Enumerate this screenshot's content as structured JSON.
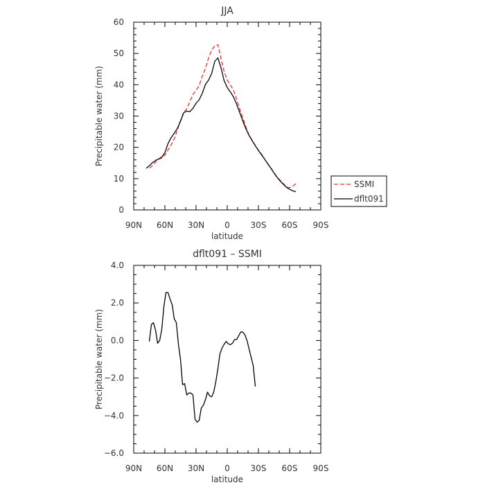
{
  "chart_data": [
    {
      "type": "line",
      "title": "JJA",
      "xlabel": "latitude",
      "ylabel": "Precipitable water (mm)",
      "xlim": [
        90,
        -90
      ],
      "ylim": [
        0,
        60
      ],
      "x_ticks": [
        90,
        60,
        30,
        0,
        -30,
        -60,
        -90
      ],
      "x_tick_labels": [
        "90N",
        "60N",
        "30N",
        "0",
        "30S",
        "60S",
        "90S"
      ],
      "y_ticks": [
        0,
        10,
        20,
        30,
        40,
        50,
        60
      ],
      "y_tick_labels": [
        "0",
        "10",
        "20",
        "30",
        "40",
        "50",
        "60"
      ],
      "legend_position": "outside-right",
      "series": [
        {
          "name": "SSMI",
          "color": "#e8302f",
          "dash": "dashed",
          "points": [
            [
              75,
              13.4
            ],
            [
              72,
              14.1
            ],
            [
              69,
              15.3
            ],
            [
              66,
              16.2
            ],
            [
              63,
              16.6
            ],
            [
              60,
              17.5
            ],
            [
              57,
              19.2
            ],
            [
              54,
              20.8
            ],
            [
              51,
              22.7
            ],
            [
              48,
              25.6
            ],
            [
              45,
              28.6
            ],
            [
              42,
              31.2
            ],
            [
              39,
              32.3
            ],
            [
              36,
              34.6
            ],
            [
              33,
              36.9
            ],
            [
              30,
              38.2
            ],
            [
              27,
              39.8
            ],
            [
              24,
              42.8
            ],
            [
              21,
              45.2
            ],
            [
              18,
              48.6
            ],
            [
              15,
              51.1
            ],
            [
              12,
              52.4
            ],
            [
              9,
              52.8
            ],
            [
              6,
              48.4
            ],
            [
              3,
              44.2
            ],
            [
              0,
              41.5
            ],
            [
              -3,
              39.9
            ],
            [
              -6,
              38.3
            ],
            [
              -9,
              35.4
            ],
            [
              -12,
              32.2
            ],
            [
              -15,
              29.4
            ],
            [
              -18,
              26.4
            ],
            [
              -21,
              23.9
            ],
            [
              -24,
              22.2
            ],
            [
              -27,
              20.6
            ],
            [
              -30,
              19.1
            ],
            [
              -33,
              17.8
            ],
            [
              -36,
              16.2
            ],
            [
              -39,
              14.8
            ],
            [
              -42,
              13.4
            ],
            [
              -45,
              11.9
            ],
            [
              -48,
              10.5
            ],
            [
              -51,
              9.4
            ],
            [
              -54,
              8.4
            ],
            [
              -57,
              7.3
            ],
            [
              -60,
              7.1
            ],
            [
              -63,
              7.6
            ],
            [
              -66,
              8.4
            ]
          ]
        },
        {
          "name": "dflt091",
          "color": "#000000",
          "dash": "solid",
          "points": [
            [
              78,
              13.3
            ],
            [
              75,
              14.1
            ],
            [
              72,
              15.1
            ],
            [
              69,
              15.8
            ],
            [
              66,
              16.3
            ],
            [
              63,
              16.9
            ],
            [
              60,
              18.3
            ],
            [
              57,
              21.2
            ],
            [
              54,
              23.1
            ],
            [
              51,
              24.5
            ],
            [
              48,
              26.1
            ],
            [
              45,
              28.3
            ],
            [
              42,
              31.0
            ],
            [
              39,
              31.6
            ],
            [
              36,
              31.4
            ],
            [
              33,
              32.5
            ],
            [
              30,
              34.1
            ],
            [
              27,
              35.2
            ],
            [
              24,
              37.3
            ],
            [
              21,
              40.1
            ],
            [
              18,
              41.5
            ],
            [
              15,
              43.6
            ],
            [
              12,
              47.5
            ],
            [
              9,
              48.6
            ],
            [
              6,
              45.4
            ],
            [
              3,
              41.3
            ],
            [
              0,
              39.1
            ],
            [
              -3,
              37.7
            ],
            [
              -6,
              36.1
            ],
            [
              -9,
              33.8
            ],
            [
              -12,
              31.1
            ],
            [
              -15,
              28.4
            ],
            [
              -18,
              25.9
            ],
            [
              -21,
              23.8
            ],
            [
              -24,
              22.1
            ],
            [
              -27,
              20.5
            ],
            [
              -30,
              19.0
            ],
            [
              -33,
              17.6
            ],
            [
              -36,
              16.2
            ],
            [
              -39,
              14.7
            ],
            [
              -42,
              13.3
            ],
            [
              -45,
              11.8
            ],
            [
              -48,
              10.4
            ],
            [
              -51,
              9.2
            ],
            [
              -54,
              8.2
            ],
            [
              -57,
              7.2
            ],
            [
              -60,
              6.6
            ],
            [
              -63,
              6.1
            ],
            [
              -66,
              5.8
            ]
          ]
        }
      ]
    },
    {
      "type": "line",
      "title": "dflt091 – SSMI",
      "xlabel": "latitude",
      "ylabel": "Precipitable water (mm)",
      "xlim": [
        90,
        -90
      ],
      "ylim": [
        -6,
        4
      ],
      "x_ticks": [
        90,
        60,
        30,
        0,
        -30,
        -60,
        -90
      ],
      "x_tick_labels": [
        "90N",
        "60N",
        "30N",
        "0",
        "30S",
        "60S",
        "90S"
      ],
      "y_ticks": [
        -6,
        -4,
        -2,
        0,
        2,
        4
      ],
      "y_tick_labels": [
        "−6.0",
        "−4.0",
        "−2.0",
        "0.0",
        "2.0",
        "4.0"
      ],
      "series": [
        {
          "name": "",
          "color": "#000000",
          "dash": "solid",
          "points": [
            [
              75,
              -0.05
            ],
            [
              73,
              0.85
            ],
            [
              71,
              0.95
            ],
            [
              69,
              0.55
            ],
            [
              67,
              -0.15
            ],
            [
              65,
              0.0
            ],
            [
              63,
              0.6
            ],
            [
              61,
              1.8
            ],
            [
              59,
              2.55
            ],
            [
              57,
              2.55
            ],
            [
              55,
              2.2
            ],
            [
              53,
              1.9
            ],
            [
              51,
              1.15
            ],
            [
              49,
              0.95
            ],
            [
              47,
              -0.2
            ],
            [
              45,
              -1.0
            ],
            [
              43,
              -2.35
            ],
            [
              41,
              -2.3
            ],
            [
              39,
              -2.9
            ],
            [
              37,
              -2.8
            ],
            [
              35,
              -2.8
            ],
            [
              33,
              -2.9
            ],
            [
              31,
              -4.2
            ],
            [
              29,
              -4.35
            ],
            [
              27,
              -4.25
            ],
            [
              25,
              -3.6
            ],
            [
              23,
              -3.45
            ],
            [
              21,
              -3.15
            ],
            [
              19,
              -2.75
            ],
            [
              17,
              -2.95
            ],
            [
              15,
              -3.0
            ],
            [
              13,
              -2.75
            ],
            [
              11,
              -2.2
            ],
            [
              9,
              -1.5
            ],
            [
              7,
              -0.7
            ],
            [
              5,
              -0.4
            ],
            [
              3,
              -0.2
            ],
            [
              1,
              -0.05
            ],
            [
              -1,
              -0.18
            ],
            [
              -3,
              -0.22
            ],
            [
              -5,
              -0.15
            ],
            [
              -7,
              0.05
            ],
            [
              -9,
              0.05
            ],
            [
              -11,
              0.25
            ],
            [
              -13,
              0.45
            ],
            [
              -15,
              0.45
            ],
            [
              -17,
              0.3
            ],
            [
              -19,
              0.0
            ],
            [
              -21,
              -0.45
            ],
            [
              -23,
              -0.9
            ],
            [
              -25,
              -1.35
            ],
            [
              -27,
              -2.45
            ]
          ]
        }
      ]
    }
  ]
}
